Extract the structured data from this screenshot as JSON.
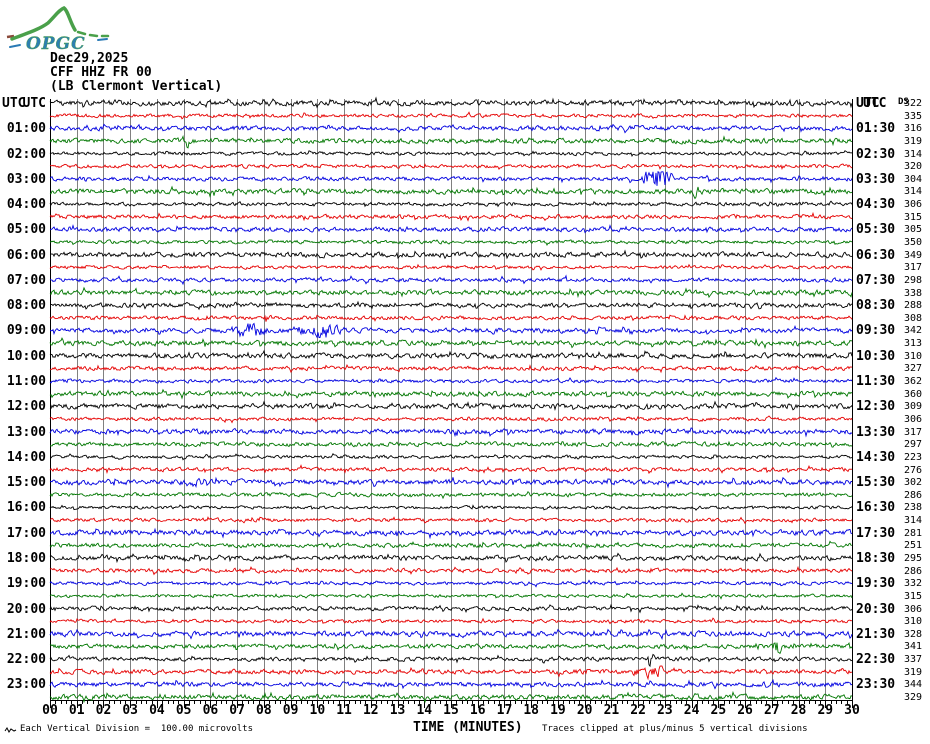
{
  "logo": {
    "text": "OPGC"
  },
  "header": {
    "date": "Dec29,2025",
    "channel": "CFF HHZ FR 00",
    "location": "(LB Clermont Vertical)"
  },
  "axis": {
    "left_header": "UTC",
    "right_header": "UTC",
    "right_column_header": "DS",
    "xlabel": "TIME (MINUTES)"
  },
  "footer": {
    "left_note": "Each Vertical Division =  100.00 microvolts",
    "right_note": "Traces clipped at plus/minus 5 vertical divisions"
  },
  "chart_data": {
    "type": "line",
    "subtype": "helicorder",
    "title": "CFF HHZ FR 00 (LB Clermont Vertical) Dec29,2025",
    "xlabel": "TIME (MINUTES)",
    "xlim": [
      0,
      30
    ],
    "minutes_per_line": 30,
    "lines": 48,
    "grid": true,
    "x_tick_labels": [
      "00",
      "01",
      "02",
      "03",
      "04",
      "05",
      "06",
      "07",
      "08",
      "09",
      "10",
      "11",
      "12",
      "13",
      "14",
      "15",
      "16",
      "17",
      "18",
      "19",
      "20",
      "21",
      "22",
      "23",
      "24",
      "25",
      "26",
      "27",
      "28",
      "29",
      "30"
    ],
    "trace_colors": {
      "black": "#000000",
      "red": "#e60000",
      "blue": "#0000e0",
      "green": "#007700"
    },
    "grid_color": "#808080",
    "rows": [
      {
        "start": "00:00",
        "left_label": "UTC",
        "right_label": "UTC",
        "value": 322,
        "color": "black"
      },
      {
        "start": "00:30",
        "left_label": "",
        "right_label": "",
        "value": 335,
        "color": "red"
      },
      {
        "start": "01:00",
        "left_label": "01:00",
        "right_label": "01:30",
        "value": 316,
        "color": "blue"
      },
      {
        "start": "01:30",
        "left_label": "",
        "right_label": "",
        "value": 319,
        "color": "green"
      },
      {
        "start": "02:00",
        "left_label": "02:00",
        "right_label": "02:30",
        "value": 314,
        "color": "black"
      },
      {
        "start": "02:30",
        "left_label": "",
        "right_label": "",
        "value": 320,
        "color": "red"
      },
      {
        "start": "03:00",
        "left_label": "03:00",
        "right_label": "03:30",
        "value": 304,
        "color": "blue"
      },
      {
        "start": "03:30",
        "left_label": "",
        "right_label": "",
        "value": 314,
        "color": "green"
      },
      {
        "start": "04:00",
        "left_label": "04:00",
        "right_label": "04:30",
        "value": 306,
        "color": "black"
      },
      {
        "start": "04:30",
        "left_label": "",
        "right_label": "",
        "value": 315,
        "color": "red"
      },
      {
        "start": "05:00",
        "left_label": "05:00",
        "right_label": "05:30",
        "value": 305,
        "color": "blue"
      },
      {
        "start": "05:30",
        "left_label": "",
        "right_label": "",
        "value": 350,
        "color": "green"
      },
      {
        "start": "06:00",
        "left_label": "06:00",
        "right_label": "06:30",
        "value": 349,
        "color": "black"
      },
      {
        "start": "06:30",
        "left_label": "",
        "right_label": "",
        "value": 317,
        "color": "red"
      },
      {
        "start": "07:00",
        "left_label": "07:00",
        "right_label": "07:30",
        "value": 298,
        "color": "blue"
      },
      {
        "start": "07:30",
        "left_label": "",
        "right_label": "",
        "value": 338,
        "color": "green"
      },
      {
        "start": "08:00",
        "left_label": "08:00",
        "right_label": "08:30",
        "value": 288,
        "color": "black"
      },
      {
        "start": "08:30",
        "left_label": "",
        "right_label": "",
        "value": 308,
        "color": "red"
      },
      {
        "start": "09:00",
        "left_label": "09:00",
        "right_label": "09:30",
        "value": 342,
        "color": "blue"
      },
      {
        "start": "09:30",
        "left_label": "",
        "right_label": "",
        "value": 313,
        "color": "green"
      },
      {
        "start": "10:00",
        "left_label": "10:00",
        "right_label": "10:30",
        "value": 310,
        "color": "black"
      },
      {
        "start": "10:30",
        "left_label": "",
        "right_label": "",
        "value": 327,
        "color": "red"
      },
      {
        "start": "11:00",
        "left_label": "11:00",
        "right_label": "11:30",
        "value": 362,
        "color": "blue"
      },
      {
        "start": "11:30",
        "left_label": "",
        "right_label": "",
        "value": 360,
        "color": "green"
      },
      {
        "start": "12:00",
        "left_label": "12:00",
        "right_label": "12:30",
        "value": 309,
        "color": "black"
      },
      {
        "start": "12:30",
        "left_label": "",
        "right_label": "",
        "value": 306,
        "color": "red"
      },
      {
        "start": "13:00",
        "left_label": "13:00",
        "right_label": "13:30",
        "value": 317,
        "color": "blue"
      },
      {
        "start": "13:30",
        "left_label": "",
        "right_label": "",
        "value": 297,
        "color": "green"
      },
      {
        "start": "14:00",
        "left_label": "14:00",
        "right_label": "14:30",
        "value": 223,
        "color": "black"
      },
      {
        "start": "14:30",
        "left_label": "",
        "right_label": "",
        "value": 276,
        "color": "red"
      },
      {
        "start": "15:00",
        "left_label": "15:00",
        "right_label": "15:30",
        "value": 302,
        "color": "blue"
      },
      {
        "start": "15:30",
        "left_label": "",
        "right_label": "",
        "value": 286,
        "color": "green"
      },
      {
        "start": "16:00",
        "left_label": "16:00",
        "right_label": "16:30",
        "value": 238,
        "color": "black"
      },
      {
        "start": "16:30",
        "left_label": "",
        "right_label": "",
        "value": 314,
        "color": "red"
      },
      {
        "start": "17:00",
        "left_label": "17:00",
        "right_label": "17:30",
        "value": 281,
        "color": "blue"
      },
      {
        "start": "17:30",
        "left_label": "",
        "right_label": "",
        "value": 251,
        "color": "green"
      },
      {
        "start": "18:00",
        "left_label": "18:00",
        "right_label": "18:30",
        "value": 295,
        "color": "black"
      },
      {
        "start": "18:30",
        "left_label": "",
        "right_label": "",
        "value": 286,
        "color": "red"
      },
      {
        "start": "19:00",
        "left_label": "19:00",
        "right_label": "19:30",
        "value": 332,
        "color": "blue"
      },
      {
        "start": "19:30",
        "left_label": "",
        "right_label": "",
        "value": 315,
        "color": "green"
      },
      {
        "start": "20:00",
        "left_label": "20:00",
        "right_label": "20:30",
        "value": 306,
        "color": "black"
      },
      {
        "start": "20:30",
        "left_label": "",
        "right_label": "",
        "value": 310,
        "color": "red"
      },
      {
        "start": "21:00",
        "left_label": "21:00",
        "right_label": "21:30",
        "value": 328,
        "color": "blue"
      },
      {
        "start": "21:30",
        "left_label": "",
        "right_label": "",
        "value": 341,
        "color": "green"
      },
      {
        "start": "22:00",
        "left_label": "22:00",
        "right_label": "22:30",
        "value": 337,
        "color": "black"
      },
      {
        "start": "22:30",
        "left_label": "",
        "right_label": "",
        "value": 319,
        "color": "red"
      },
      {
        "start": "23:00",
        "left_label": "23:00",
        "right_label": "23:30",
        "value": 344,
        "color": "blue"
      },
      {
        "start": "23:30",
        "left_label": "",
        "right_label": "",
        "value": 329,
        "color": "green"
      }
    ],
    "events": [
      {
        "row": 3,
        "minute": 4.9,
        "duration": 0.5,
        "amplitude": 3.5
      },
      {
        "row": 6,
        "minute": 22.1,
        "duration": 1.3,
        "amplitude": 8.0
      },
      {
        "row": 7,
        "minute": 24.0,
        "duration": 0.4,
        "amplitude": 4.0
      },
      {
        "row": 17,
        "minute": 8.0,
        "duration": 0.25,
        "amplitude": 4.5
      },
      {
        "row": 18,
        "minute": 6.6,
        "duration": 1.6,
        "amplitude": 4.0
      },
      {
        "row": 18,
        "minute": 8.9,
        "duration": 2.2,
        "amplitude": 3.2
      },
      {
        "row": 30,
        "minute": 5.2,
        "duration": 0.8,
        "amplitude": 2.5
      },
      {
        "row": 43,
        "minute": 27.0,
        "duration": 0.5,
        "amplitude": 5.0
      },
      {
        "row": 44,
        "minute": 22.3,
        "duration": 0.3,
        "amplitude": 5.5
      },
      {
        "row": 45,
        "minute": 21.6,
        "duration": 2.0,
        "amplitude": 2.5
      },
      {
        "row": 45,
        "minute": 22.3,
        "duration": 0.5,
        "amplitude": 4.0
      }
    ]
  }
}
